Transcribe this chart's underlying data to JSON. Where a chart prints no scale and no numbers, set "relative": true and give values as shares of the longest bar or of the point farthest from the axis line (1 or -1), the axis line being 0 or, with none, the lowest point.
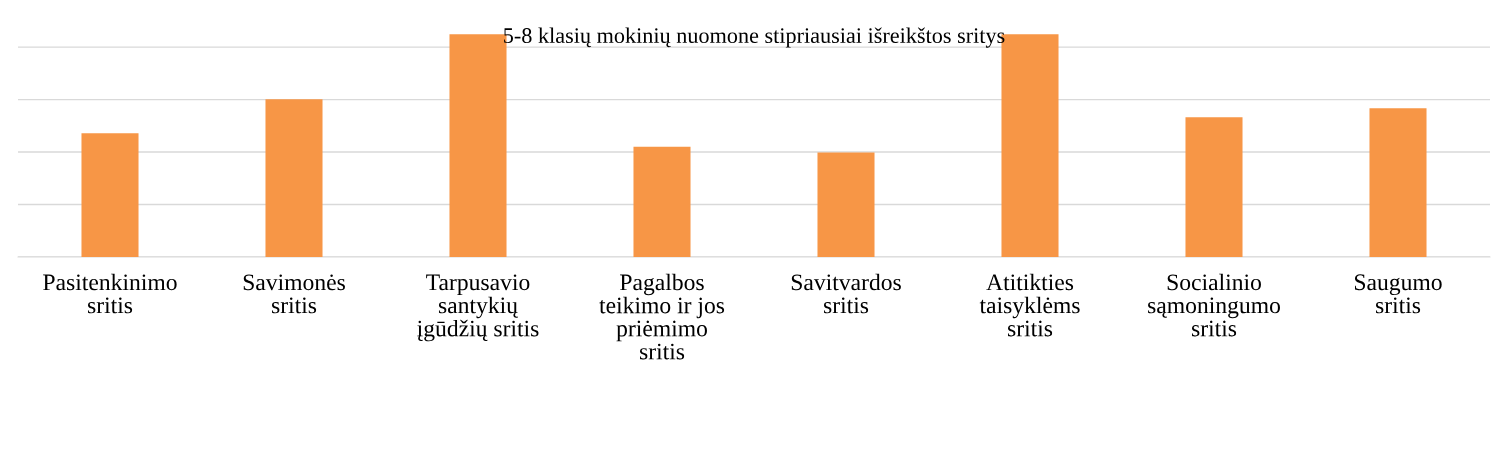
{
  "chart_data": {
    "type": "bar",
    "title": "5-8 klasių mokinių nuomone stipriausiai išreikštos sritys",
    "categories": [
      "Pasitenkinimo\nsritis",
      "Savimonės\nsritis",
      "Tarpusavio\nsantykių\nįgūdžių sritis",
      "Pagalbos\nteikimo ir jos\npriėmimo\nsritis",
      "Savitvardos\nsritis",
      "Atitikties\ntaisyklėms\nsritis",
      "Socialinio\nsąmoningumo\nsritis",
      "Saugumo\nsritis"
    ],
    "values": [
      0.556,
      0.709,
      1,
      0.495,
      0.469,
      1,
      0.628,
      0.668
    ],
    "color": "#f79646",
    "relative": true,
    "grid": "y"
  }
}
